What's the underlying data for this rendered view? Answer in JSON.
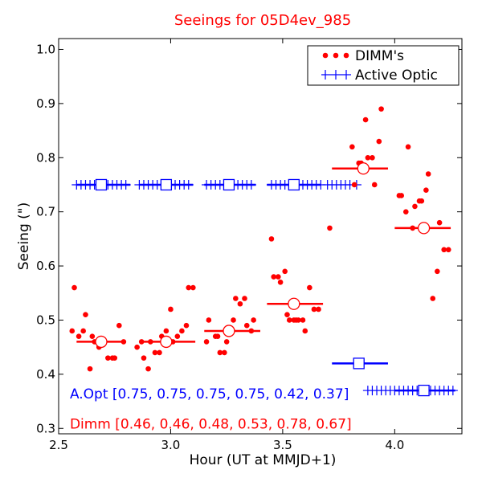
{
  "chart_data": {
    "type": "scatter",
    "title": "Seeings for 05D4ev_985",
    "title_color": "#ff0000",
    "xlabel": "Hour (UT at MMJD+1)",
    "ylabel": "Seeing (\")",
    "xlim": [
      2.5,
      4.3
    ],
    "ylim": [
      0.29,
      1.02
    ],
    "xticks": [
      2.5,
      3.0,
      3.5,
      4.0
    ],
    "xtick_labels": [
      "2.5",
      "3.0",
      "3.5",
      "4.0"
    ],
    "yticks": [
      0.3,
      0.4,
      0.5,
      0.6,
      0.7,
      0.8,
      0.9,
      1.0
    ],
    "ytick_labels": [
      "0.3",
      "0.4",
      "0.5",
      "0.6",
      "0.7",
      "0.8",
      "0.9",
      "1.0"
    ],
    "grid": false,
    "legend_position": "top-right",
    "legend": [
      {
        "label": "DIMM's",
        "marker": "dot",
        "color": "#ff0000"
      },
      {
        "label": "Active Optic",
        "marker": "plus",
        "color": "#0000ff"
      }
    ],
    "series": [
      {
        "name": "DIMM's",
        "color": "#ff0000",
        "marker": "dot",
        "points": [
          [
            2.56,
            0.48
          ],
          [
            2.57,
            0.56
          ],
          [
            2.59,
            0.47
          ],
          [
            2.61,
            0.48
          ],
          [
            2.62,
            0.51
          ],
          [
            2.64,
            0.41
          ],
          [
            2.65,
            0.47
          ],
          [
            2.66,
            0.46
          ],
          [
            2.68,
            0.45
          ],
          [
            2.7,
            0.46
          ],
          [
            2.72,
            0.43
          ],
          [
            2.74,
            0.43
          ],
          [
            2.75,
            0.43
          ],
          [
            2.77,
            0.49
          ],
          [
            2.79,
            0.46
          ],
          [
            2.85,
            0.45
          ],
          [
            2.87,
            0.46
          ],
          [
            2.88,
            0.43
          ],
          [
            2.9,
            0.41
          ],
          [
            2.91,
            0.46
          ],
          [
            2.93,
            0.44
          ],
          [
            2.95,
            0.44
          ],
          [
            2.96,
            0.47
          ],
          [
            2.98,
            0.48
          ],
          [
            3.0,
            0.52
          ],
          [
            3.01,
            0.46
          ],
          [
            3.03,
            0.47
          ],
          [
            3.05,
            0.48
          ],
          [
            3.07,
            0.49
          ],
          [
            3.08,
            0.56
          ],
          [
            3.1,
            0.56
          ],
          [
            3.16,
            0.46
          ],
          [
            3.17,
            0.5
          ],
          [
            3.2,
            0.47
          ],
          [
            3.21,
            0.47
          ],
          [
            3.22,
            0.44
          ],
          [
            3.24,
            0.44
          ],
          [
            3.25,
            0.46
          ],
          [
            3.26,
            0.48
          ],
          [
            3.28,
            0.5
          ],
          [
            3.29,
            0.54
          ],
          [
            3.31,
            0.53
          ],
          [
            3.33,
            0.54
          ],
          [
            3.34,
            0.49
          ],
          [
            3.36,
            0.48
          ],
          [
            3.37,
            0.5
          ],
          [
            3.45,
            0.65
          ],
          [
            3.46,
            0.58
          ],
          [
            3.48,
            0.58
          ],
          [
            3.49,
            0.57
          ],
          [
            3.51,
            0.59
          ],
          [
            3.52,
            0.51
          ],
          [
            3.53,
            0.5
          ],
          [
            3.55,
            0.5
          ],
          [
            3.56,
            0.5
          ],
          [
            3.57,
            0.5
          ],
          [
            3.59,
            0.5
          ],
          [
            3.6,
            0.48
          ],
          [
            3.62,
            0.56
          ],
          [
            3.64,
            0.52
          ],
          [
            3.66,
            0.52
          ],
          [
            3.71,
            0.67
          ],
          [
            3.81,
            0.82
          ],
          [
            3.82,
            0.75
          ],
          [
            3.84,
            0.79
          ],
          [
            3.85,
            0.79
          ],
          [
            3.86,
            0.78
          ],
          [
            3.87,
            0.87
          ],
          [
            3.88,
            0.8
          ],
          [
            3.9,
            0.8
          ],
          [
            3.91,
            0.75
          ],
          [
            3.93,
            0.83
          ],
          [
            3.94,
            0.89
          ],
          [
            4.02,
            0.73
          ],
          [
            4.03,
            0.73
          ],
          [
            4.05,
            0.7
          ],
          [
            4.06,
            0.82
          ],
          [
            4.08,
            0.67
          ],
          [
            4.09,
            0.71
          ],
          [
            4.11,
            0.72
          ],
          [
            4.12,
            0.72
          ],
          [
            4.14,
            0.74
          ],
          [
            4.15,
            0.77
          ],
          [
            4.17,
            0.54
          ],
          [
            4.19,
            0.59
          ],
          [
            4.2,
            0.68
          ],
          [
            4.22,
            0.63
          ],
          [
            4.24,
            0.63
          ]
        ]
      },
      {
        "name": "Active Optic",
        "color": "#0000ff",
        "marker": "plus",
        "points": [
          [
            2.58,
            0.75
          ],
          [
            2.6,
            0.75
          ],
          [
            2.62,
            0.75
          ],
          [
            2.64,
            0.75
          ],
          [
            2.66,
            0.75
          ],
          [
            2.68,
            0.75
          ],
          [
            2.72,
            0.75
          ],
          [
            2.74,
            0.75
          ],
          [
            2.76,
            0.75
          ],
          [
            2.78,
            0.75
          ],
          [
            2.8,
            0.75
          ],
          [
            2.86,
            0.75
          ],
          [
            2.88,
            0.75
          ],
          [
            2.9,
            0.75
          ],
          [
            2.92,
            0.75
          ],
          [
            2.94,
            0.75
          ],
          [
            2.96,
            0.75
          ],
          [
            3.0,
            0.75
          ],
          [
            3.02,
            0.75
          ],
          [
            3.04,
            0.75
          ],
          [
            3.06,
            0.75
          ],
          [
            3.08,
            0.75
          ],
          [
            3.16,
            0.75
          ],
          [
            3.18,
            0.75
          ],
          [
            3.2,
            0.75
          ],
          [
            3.22,
            0.75
          ],
          [
            3.24,
            0.75
          ],
          [
            3.28,
            0.75
          ],
          [
            3.3,
            0.75
          ],
          [
            3.32,
            0.75
          ],
          [
            3.34,
            0.75
          ],
          [
            3.36,
            0.75
          ],
          [
            3.45,
            0.75
          ],
          [
            3.47,
            0.75
          ],
          [
            3.49,
            0.75
          ],
          [
            3.51,
            0.75
          ],
          [
            3.53,
            0.75
          ],
          [
            3.55,
            0.75
          ],
          [
            3.59,
            0.75
          ],
          [
            3.61,
            0.75
          ],
          [
            3.63,
            0.75
          ],
          [
            3.65,
            0.75
          ],
          [
            3.67,
            0.75
          ],
          [
            3.7,
            0.75
          ],
          [
            3.72,
            0.75
          ],
          [
            3.74,
            0.75
          ],
          [
            3.76,
            0.75
          ],
          [
            3.78,
            0.75
          ],
          [
            3.8,
            0.75
          ],
          [
            3.83,
            0.75
          ],
          [
            3.88,
            0.37
          ],
          [
            3.9,
            0.37
          ],
          [
            3.92,
            0.37
          ],
          [
            3.94,
            0.37
          ],
          [
            3.96,
            0.37
          ],
          [
            3.98,
            0.37
          ],
          [
            4.0,
            0.37
          ],
          [
            4.02,
            0.37
          ],
          [
            4.04,
            0.37
          ],
          [
            4.06,
            0.37
          ],
          [
            4.08,
            0.37
          ],
          [
            4.1,
            0.37
          ],
          [
            4.16,
            0.37
          ],
          [
            4.18,
            0.37
          ],
          [
            4.2,
            0.37
          ],
          [
            4.22,
            0.37
          ],
          [
            4.24,
            0.37
          ],
          [
            4.26,
            0.37
          ]
        ]
      }
    ],
    "dimm_bins": [
      {
        "x": 2.69,
        "xmin": 2.58,
        "xmax": 2.79,
        "y": 0.46
      },
      {
        "x": 2.98,
        "xmin": 2.86,
        "xmax": 3.11,
        "y": 0.46
      },
      {
        "x": 3.26,
        "xmin": 3.15,
        "xmax": 3.4,
        "y": 0.48
      },
      {
        "x": 3.55,
        "xmin": 3.43,
        "xmax": 3.68,
        "y": 0.53
      },
      {
        "x": 3.86,
        "xmin": 3.72,
        "xmax": 3.97,
        "y": 0.78
      },
      {
        "x": 4.13,
        "xmin": 4.0,
        "xmax": 4.25,
        "y": 0.67
      }
    ],
    "ao_bins": [
      {
        "x": 2.69,
        "xmin": 2.58,
        "xmax": 2.82,
        "y": 0.75
      },
      {
        "x": 2.98,
        "xmin": 2.86,
        "xmax": 3.1,
        "y": 0.75
      },
      {
        "x": 3.26,
        "xmin": 3.15,
        "xmax": 3.38,
        "y": 0.75
      },
      {
        "x": 3.55,
        "xmin": 3.43,
        "xmax": 3.67,
        "y": 0.75
      },
      {
        "x": 3.84,
        "xmin": 3.72,
        "xmax": 3.97,
        "y": 0.42
      },
      {
        "x": 4.13,
        "xmin": 4.0,
        "xmax": 4.27,
        "y": 0.37
      }
    ],
    "annotations": [
      {
        "text": "A.Opt [0.75, 0.75, 0.75, 0.75, 0.42, 0.37]",
        "color": "#0000ff",
        "x": 2.55,
        "y": 0.355
      },
      {
        "text": "Dimm [0.46, 0.46, 0.48, 0.53, 0.78, 0.67]",
        "color": "#ff0000",
        "x": 2.55,
        "y": 0.3
      }
    ]
  }
}
